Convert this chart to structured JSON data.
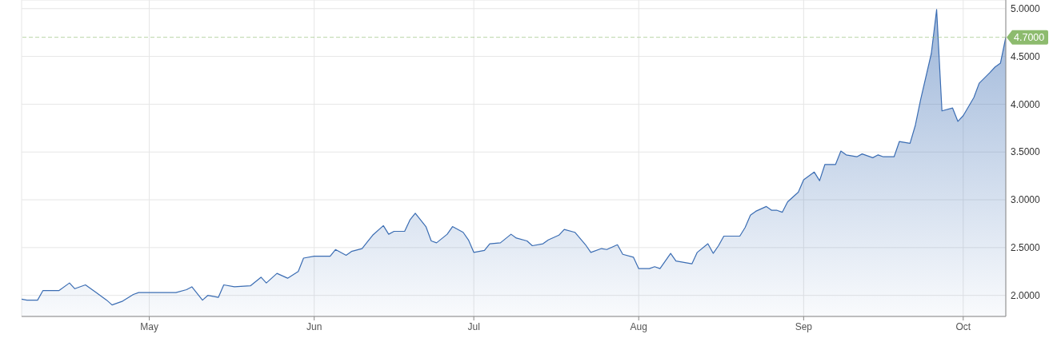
{
  "chart_data": {
    "type": "area",
    "color": "#3b6db3",
    "x": [
      "--04-07",
      "--04-08",
      "--04-10",
      "--04-11",
      "--04-14",
      "--04-16",
      "--04-17",
      "--04-19",
      "--04-21",
      "--04-23",
      "--04-24",
      "--04-26",
      "--04-28",
      "--04-29",
      "--05-06",
      "--05-08",
      "--05-09",
      "--05-11",
      "--05-12",
      "--05-14",
      "--05-15",
      "--05-17",
      "--05-20",
      "--05-22",
      "--05-23",
      "--05-25",
      "--05-27",
      "--05-29",
      "--05-30",
      "--06-01",
      "--06-04",
      "--06-05",
      "--06-07",
      "--06-08",
      "--06-10",
      "--06-11",
      "--06-12",
      "--06-14",
      "--06-15",
      "--06-16",
      "--06-18",
      "--06-19",
      "--06-20",
      "--06-22",
      "--06-23",
      "--06-24",
      "--06-26",
      "--06-27",
      "--06-29",
      "--06-30",
      "--07-01",
      "--07-03",
      "--07-04",
      "--07-06",
      "--07-08",
      "--07-09",
      "--07-11",
      "--07-12",
      "--07-14",
      "--07-15",
      "--07-17",
      "--07-18",
      "--07-20",
      "--07-22",
      "--07-23",
      "--07-25",
      "--07-26",
      "--07-28",
      "--07-29",
      "--07-31",
      "--08-01",
      "--08-03",
      "--08-04",
      "--08-05",
      "--08-07",
      "--08-08",
      "--08-11",
      "--08-12",
      "--08-14",
      "--08-15",
      "--08-16",
      "--08-17",
      "--08-20",
      "--08-21",
      "--08-22",
      "--08-23",
      "--08-25",
      "--08-26",
      "--08-27",
      "--08-28",
      "--08-29",
      "--08-31",
      "--09-01",
      "--09-03",
      "--09-04",
      "--09-05",
      "--09-07",
      "--09-08",
      "--09-09",
      "--09-11",
      "--09-12",
      "--09-14",
      "--09-15",
      "--09-16",
      "--09-18",
      "--09-19",
      "--09-21",
      "--09-22",
      "--09-23",
      "--09-25",
      "--09-26",
      "--09-27",
      "--09-29",
      "--09-30",
      "--10-01",
      "--10-03",
      "--10-04",
      "--10-06",
      "--10-07",
      "--10-08",
      "--10-09"
    ],
    "values": [
      1.96,
      1.95,
      1.95,
      2.05,
      2.05,
      2.13,
      2.07,
      2.11,
      2.03,
      1.95,
      1.9,
      1.94,
      2.01,
      2.03,
      2.03,
      2.06,
      2.09,
      1.95,
      2.0,
      1.98,
      2.11,
      2.09,
      2.1,
      2.19,
      2.13,
      2.23,
      2.18,
      2.25,
      2.39,
      2.41,
      2.41,
      2.48,
      2.42,
      2.46,
      2.49,
      2.56,
      2.63,
      2.73,
      2.64,
      2.67,
      2.67,
      2.79,
      2.86,
      2.72,
      2.57,
      2.55,
      2.64,
      2.72,
      2.66,
      2.58,
      2.45,
      2.47,
      2.54,
      2.55,
      2.64,
      2.6,
      2.57,
      2.52,
      2.54,
      2.58,
      2.63,
      2.69,
      2.66,
      2.53,
      2.45,
      2.49,
      2.48,
      2.53,
      2.43,
      2.4,
      2.28,
      2.28,
      2.3,
      2.28,
      2.44,
      2.36,
      2.33,
      2.45,
      2.54,
      2.44,
      2.52,
      2.62,
      2.62,
      2.71,
      2.84,
      2.88,
      2.93,
      2.89,
      2.89,
      2.87,
      2.98,
      3.08,
      3.21,
      3.29,
      3.2,
      3.37,
      3.37,
      3.51,
      3.47,
      3.45,
      3.48,
      3.44,
      3.47,
      3.45,
      3.45,
      3.61,
      3.59,
      3.78,
      4.05,
      4.53,
      4.99,
      3.93,
      3.96,
      3.82,
      3.88,
      4.07,
      4.22,
      4.33,
      4.39,
      4.43,
      4.7
    ],
    "xlim": [
      "--04-07",
      "--10-09"
    ],
    "xticks": [
      {
        "value": "--05-01",
        "label": "May"
      },
      {
        "value": "--06-01",
        "label": "Jun"
      },
      {
        "value": "--07-01",
        "label": "Jul"
      },
      {
        "value": "--08-01",
        "label": "Aug"
      },
      {
        "value": "--09-01",
        "label": "Sep"
      },
      {
        "value": "--10-01",
        "label": "Oct"
      }
    ],
    "ylim": [
      1.78,
      5.09
    ],
    "yticks": [
      {
        "value": 2,
        "label": "2.0000"
      },
      {
        "value": 2.5,
        "label": "2.5000"
      },
      {
        "value": 3,
        "label": "3.0000"
      },
      {
        "value": 3.5,
        "label": "3.5000"
      },
      {
        "value": 4,
        "label": "4.0000"
      },
      {
        "value": 4.5,
        "label": "4.5000"
      },
      {
        "value": 5,
        "label": "5.0000"
      }
    ],
    "grid": true,
    "ref_lines": [
      {
        "axis": "y",
        "value": 4.7,
        "label": "4.7000",
        "color": "#8dbb6e",
        "line_style": "dashed"
      }
    ]
  }
}
